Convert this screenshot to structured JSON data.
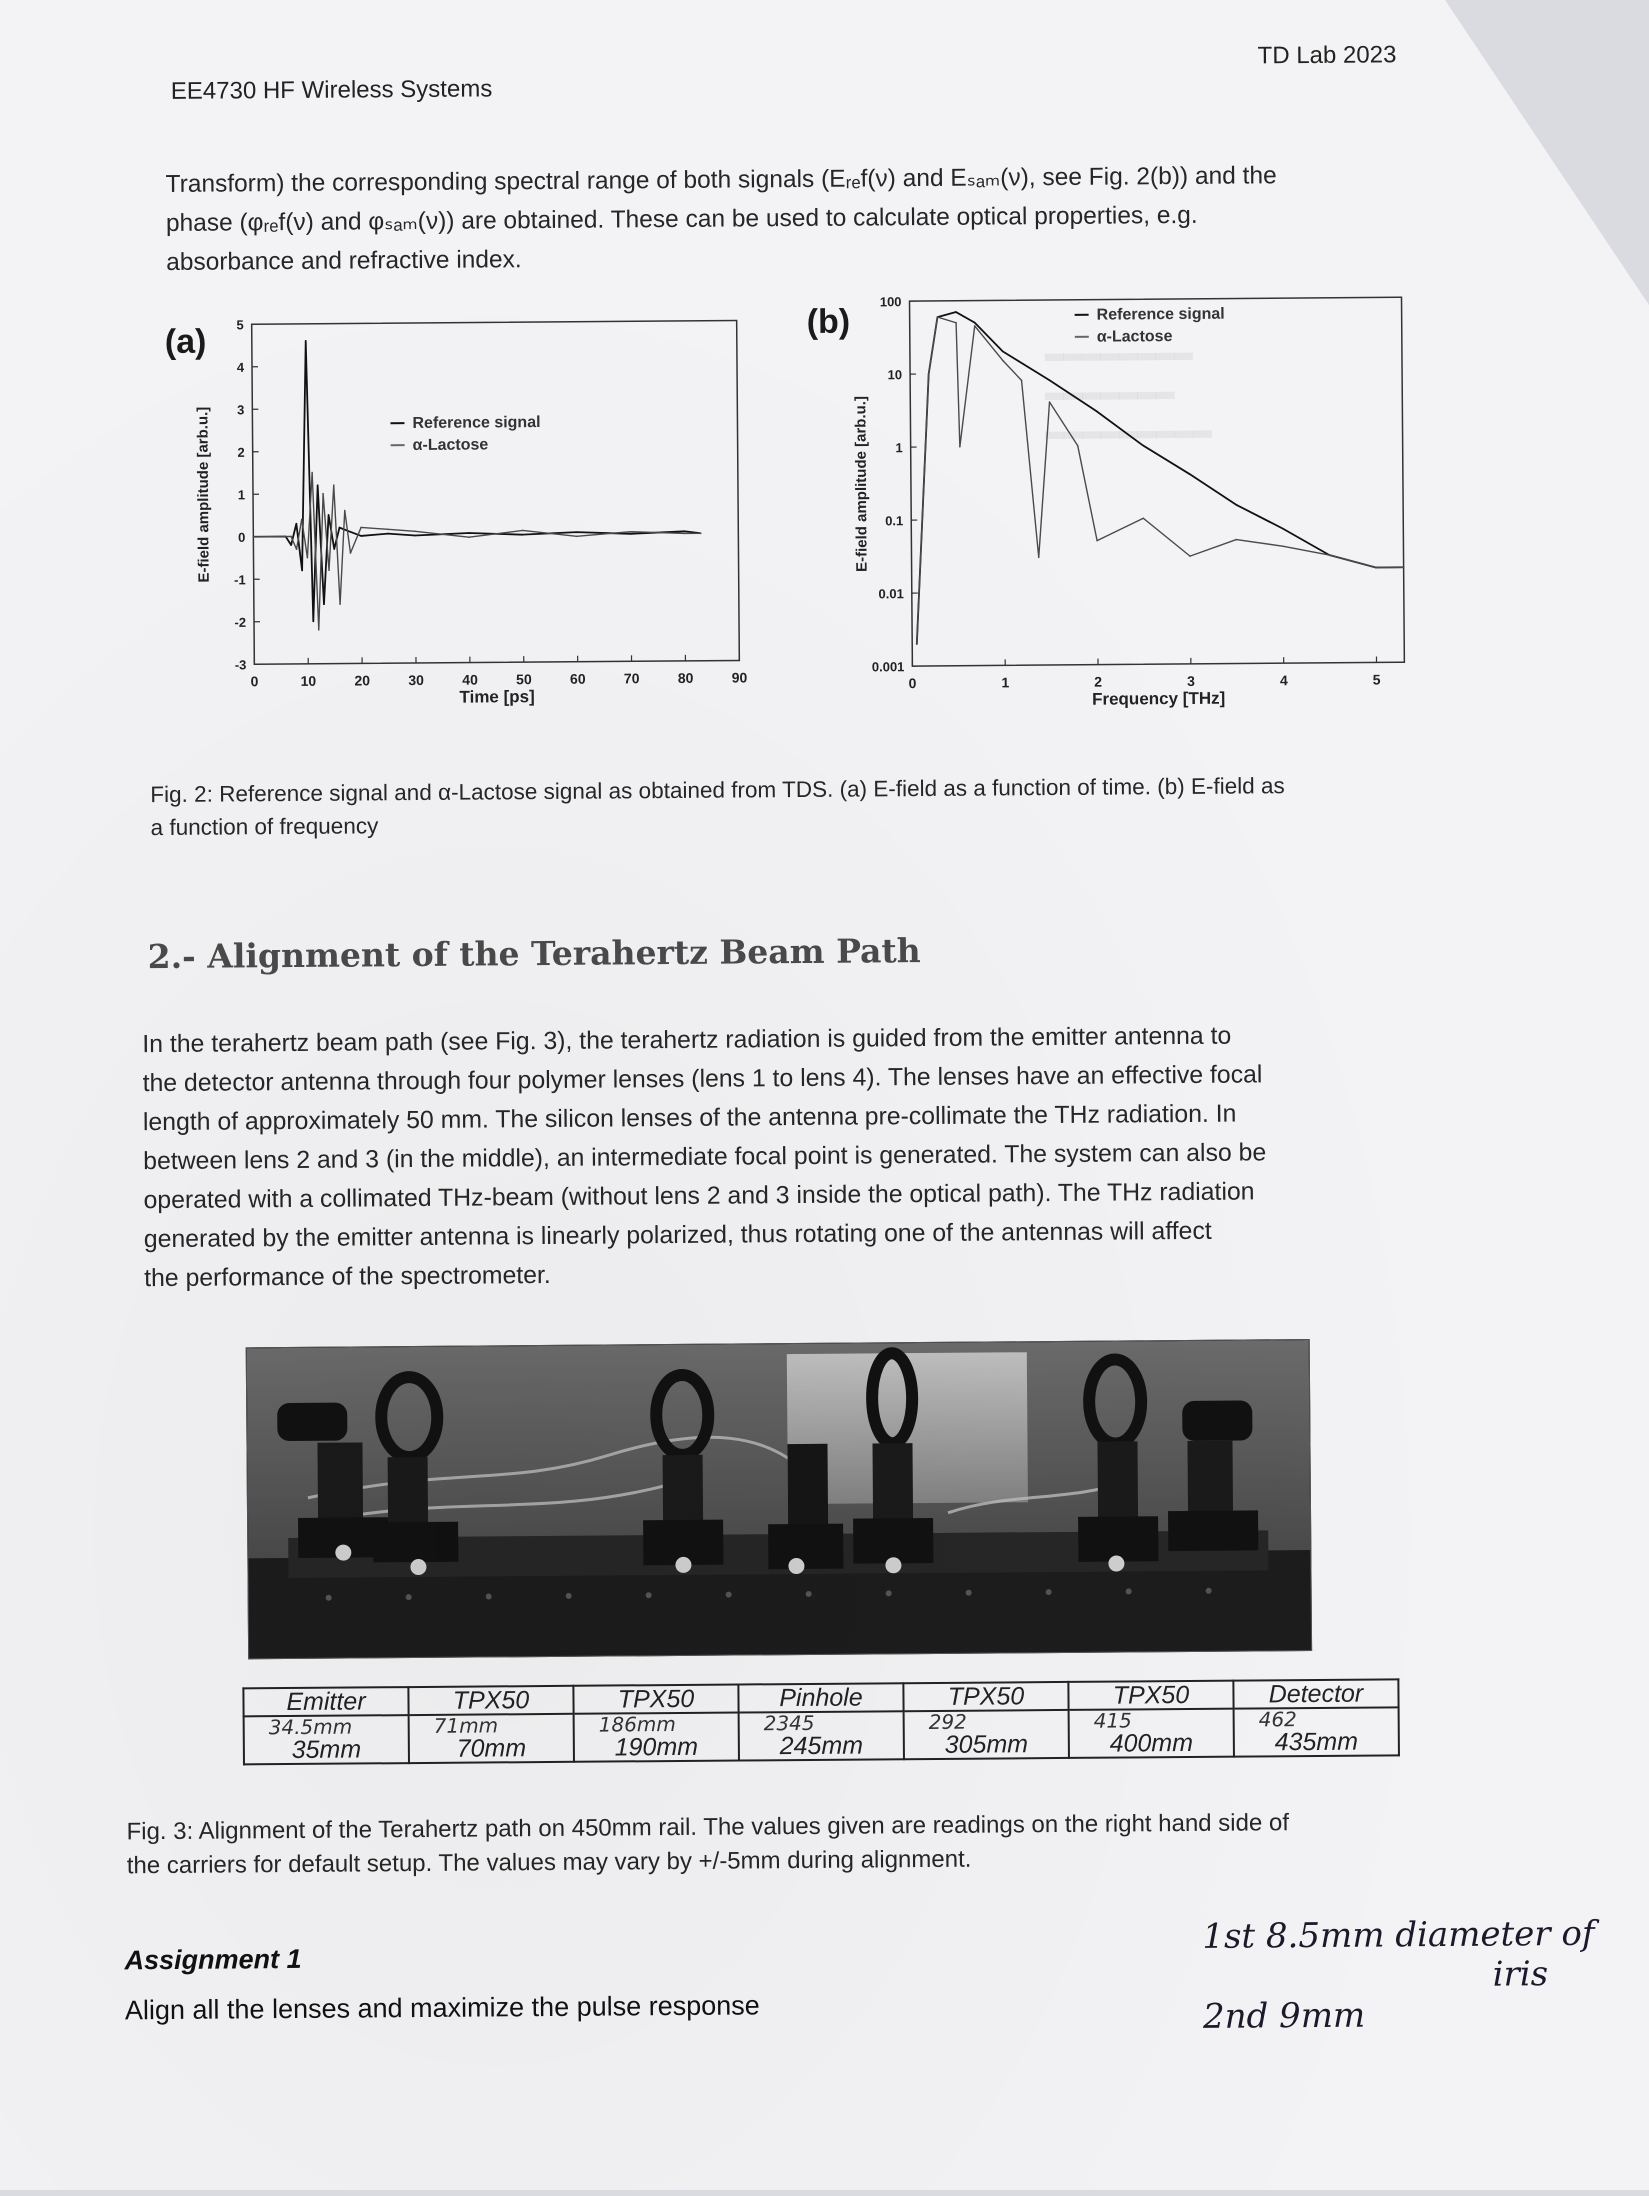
{
  "header": {
    "course": "EE4730 HF Wireless Systems",
    "lab": "TD Lab 2023"
  },
  "intro_lines": [
    "Transform) the corresponding spectral range of both signals (Eᵣₑf(ν) and Eₛₐₘ(ν), see Fig. 2(b)) and the",
    "phase (φᵣₑf(ν) and φₛₐₘ(ν)) are obtained. These can be used to calculate optical properties, e.g.",
    "absorbance and refractive index."
  ],
  "figure2": {
    "a": {
      "label": "(a)",
      "xlabel": "Time [ps]",
      "ylabel": "E-field amplitude [arb.u.]",
      "xticks": [
        "0",
        "10",
        "20",
        "30",
        "40",
        "50",
        "60",
        "70",
        "80",
        "90"
      ],
      "yticks": [
        "5",
        "4",
        "3",
        "2",
        "1",
        "0",
        "-1",
        "-2",
        "-3"
      ],
      "legend": [
        "Reference signal",
        "α-Lactose"
      ]
    },
    "b": {
      "label": "(b)",
      "xlabel": "Frequency [THz]",
      "ylabel": "E-field amplitude [arb.u.]",
      "xticks": [
        "0",
        "1",
        "2",
        "3",
        "4",
        "5"
      ],
      "yticks": [
        "100",
        "10",
        "1",
        "0.1",
        "0.01",
        "0.001"
      ],
      "legend": [
        "Reference signal",
        "α-Lactose"
      ]
    },
    "caption_lines": [
      "Fig. 2: Reference signal and α-Lactose signal as obtained from TDS. (a) E-field as a function of time. (b) E-field as",
      "a function of frequency"
    ]
  },
  "chart_data": [
    {
      "type": "line",
      "title": "",
      "xlabel": "Time [ps]",
      "ylabel": "E-field amplitude [arb.u.]",
      "xlim": [
        0,
        90
      ],
      "ylim": [
        -3,
        5
      ],
      "series": [
        {
          "name": "Reference signal",
          "x": [
            0,
            6,
            7,
            8,
            9,
            10,
            11,
            12,
            13,
            14,
            15,
            16,
            18,
            20,
            25,
            30,
            40,
            50,
            60,
            70,
            80,
            83
          ],
          "y": [
            0,
            0,
            -0.2,
            0.3,
            -0.8,
            4.6,
            -2.0,
            1.2,
            -1.6,
            0.5,
            -0.3,
            0.2,
            0.1,
            0.0,
            0.05,
            0.0,
            0.05,
            0.0,
            0.05,
            0.0,
            0.05,
            0.0
          ]
        },
        {
          "name": "α-Lactose",
          "x": [
            0,
            7,
            8,
            9,
            10,
            11,
            12,
            13,
            14,
            15,
            16,
            17,
            18,
            20,
            25,
            30,
            40,
            50,
            60,
            70,
            80,
            83
          ],
          "y": [
            0,
            0,
            -0.3,
            0.4,
            -0.5,
            1.5,
            -2.2,
            1.0,
            -0.8,
            1.2,
            -1.6,
            0.6,
            -0.4,
            0.2,
            0.15,
            0.1,
            -0.05,
            0.1,
            -0.05,
            0.05,
            0.0,
            0.0
          ]
        }
      ]
    },
    {
      "type": "line",
      "title": "",
      "xlabel": "Frequency [THz]",
      "ylabel": "E-field amplitude [arb.u.]",
      "xlim": [
        0,
        5.3
      ],
      "ylim": [
        0.001,
        100
      ],
      "yscale": "log",
      "series": [
        {
          "name": "Reference signal",
          "x": [
            0.05,
            0.2,
            0.3,
            0.5,
            0.7,
            1.0,
            1.5,
            2.0,
            2.5,
            3.0,
            3.5,
            4.0,
            4.5,
            5.0,
            5.3
          ],
          "y": [
            0.002,
            10,
            60,
            70,
            50,
            20,
            8,
            3,
            1,
            0.4,
            0.15,
            0.07,
            0.03,
            0.02,
            0.02
          ]
        },
        {
          "name": "α-Lactose",
          "x": [
            0.05,
            0.2,
            0.3,
            0.5,
            0.53,
            0.7,
            1.0,
            1.2,
            1.37,
            1.5,
            1.8,
            2.0,
            2.5,
            3.0,
            3.5,
            4.0,
            4.5,
            5.0,
            5.3
          ],
          "y": [
            0.002,
            10,
            60,
            50,
            1,
            45,
            15,
            8,
            0.03,
            4,
            1,
            0.05,
            0.1,
            0.03,
            0.05,
            0.04,
            0.03,
            0.02,
            0.02
          ]
        }
      ]
    }
  ],
  "section": {
    "title": "2.- Alignment of the Terahertz Beam Path",
    "body_lines": [
      "In the terahertz beam path (see Fig. 3), the terahertz radiation is guided from the emitter antenna to",
      "the detector antenna through four polymer lenses (lens 1 to lens 4). The lenses have an effective focal",
      "length of approximately 50 mm. The silicon lenses of the antenna pre-collimate the THz radiation. In",
      "between lens 2 and 3 (in the middle), an intermediate focal point is generated. The system can also be",
      "operated with a collimated THz-beam (without lens 2 and 3 inside the optical path). The THz radiation",
      "generated by the emitter antenna is linearly polarized, thus rotating one of the antennas will affect",
      "the performance of the spectrometer."
    ]
  },
  "rail_table": {
    "headers": [
      "Emitter",
      "TPX50",
      "TPX50",
      "Pinhole",
      "TPX50",
      "TPX50",
      "Detector"
    ],
    "handwritten": [
      "34.5mm",
      "71mm",
      "186mm",
      "2345",
      "292",
      "415",
      "462"
    ],
    "positions": [
      "35mm",
      "70mm",
      "190mm",
      "245mm",
      "305mm",
      "400mm",
      "435mm"
    ]
  },
  "figure3_caption_lines": [
    "Fig. 3: Alignment of the Terahertz path on 450mm rail. The values given are readings on the right hand side of",
    "the carriers for default setup. The values may vary by +/-5mm during alignment."
  ],
  "assignment": {
    "title": "Assignment 1",
    "text": "Align all the lenses and maximize the pulse response"
  },
  "handwritten_note": {
    "line1": "1st 8.5mm diameter of",
    "line2": "iris",
    "line3": "2nd 9mm"
  }
}
